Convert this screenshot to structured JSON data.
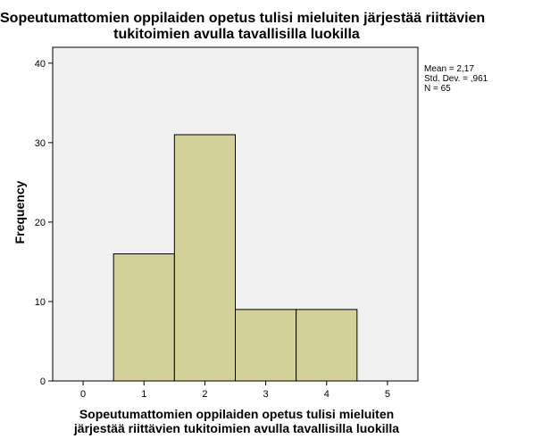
{
  "chart_data": {
    "type": "bar",
    "title_lines": [
      "Sopeutumattomien oppilaiden opetus tulisi mieluiten järjestää riittävien",
      "tukitoimien avulla tavallisilla luokilla"
    ],
    "xlabel_lines": [
      "Sopeutumattomien oppilaiden opetus tulisi mieluiten",
      "järjestää riittävien tukitoimien avulla tavallisilla luokilla"
    ],
    "ylabel": "Frequency",
    "xlim": [
      -0.5,
      5.5
    ],
    "ylim": [
      0,
      42
    ],
    "x_ticks": [
      "0",
      "1",
      "2",
      "3",
      "4",
      "5"
    ],
    "y_ticks": [
      "0",
      "10",
      "20",
      "30",
      "40"
    ],
    "bins": [
      {
        "x": 1,
        "value": 16
      },
      {
        "x": 2,
        "value": 31
      },
      {
        "x": 3,
        "value": 9
      },
      {
        "x": 4,
        "value": 9
      }
    ],
    "bar_color": "#d4d09a",
    "plot_background": "#f0f0f0",
    "stats": {
      "mean": "Mean = 2,17",
      "std": "Std. Dev. = ,961",
      "n": "N = 65"
    }
  }
}
